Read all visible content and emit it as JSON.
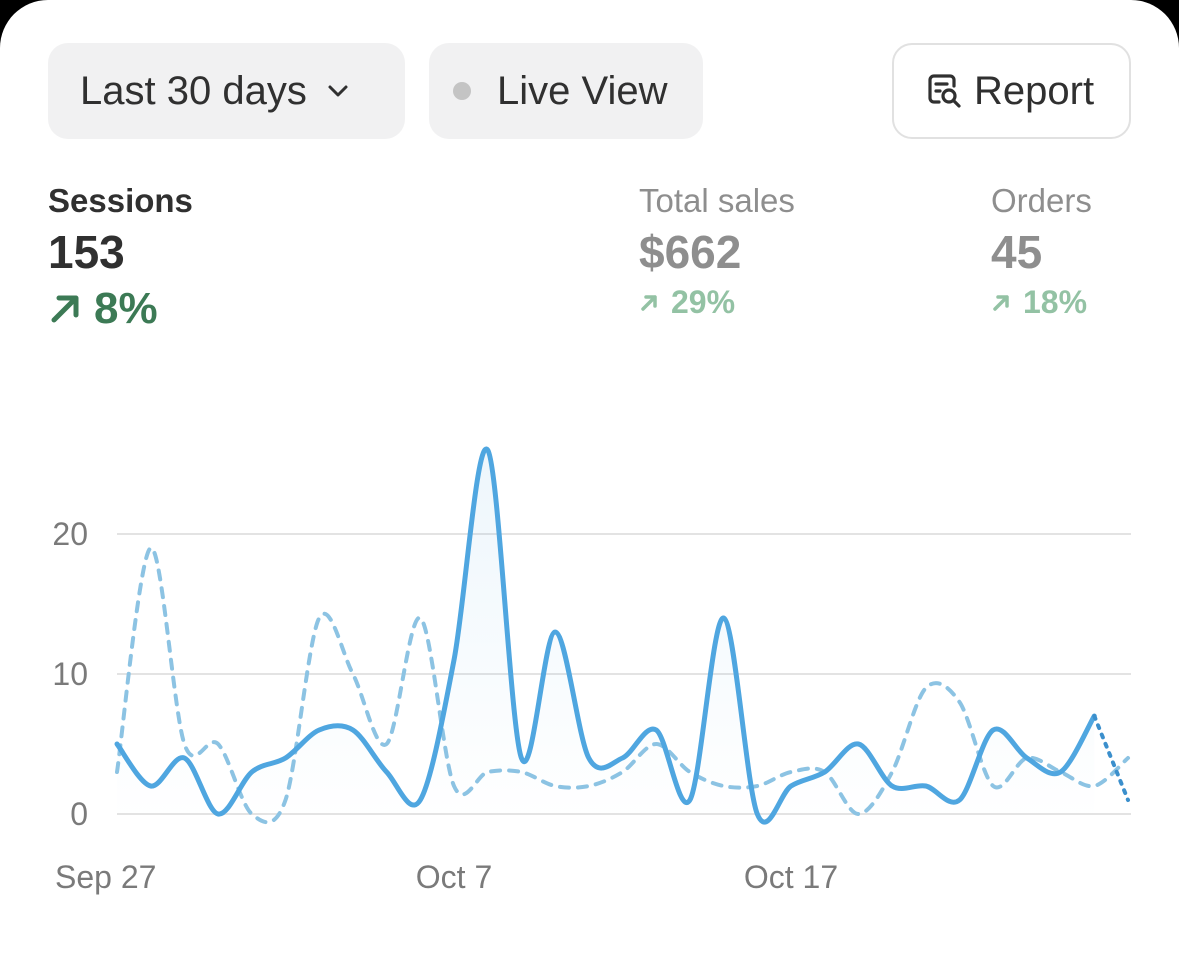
{
  "controls": {
    "date_range_label": "Last 30 days",
    "live_view_label": "Live View",
    "report_label": "Report"
  },
  "metrics": {
    "sessions": {
      "label": "Sessions",
      "value": "153",
      "change": "8%"
    },
    "total_sales": {
      "label": "Total sales",
      "value": "$662",
      "change": "29%"
    },
    "orders": {
      "label": "Orders",
      "value": "45",
      "change": "18%"
    }
  },
  "colors": {
    "accent_line": "#4fa6e0",
    "comparison_line": "#8cc3e3",
    "positive_change": "#3c7a55",
    "positive_change_muted": "#93c2a4"
  },
  "chart_data": {
    "type": "line",
    "ylim": [
      0,
      20
    ],
    "y_ticks": [
      0,
      10,
      20
    ],
    "y_tick_labels": [
      "0",
      "10",
      "20"
    ],
    "x_ticks": [
      0,
      10,
      20
    ],
    "x_tick_labels": [
      "Sep 27",
      "Oct 7",
      "Oct 17"
    ],
    "grid": true,
    "series": [
      {
        "style": "solid",
        "values": [
          5,
          2,
          4,
          0,
          3,
          4,
          6,
          6,
          3,
          1,
          11,
          26,
          4,
          13,
          4,
          4,
          6,
          1,
          14,
          0,
          2,
          3,
          5,
          2,
          2,
          1,
          6,
          4,
          3,
          7,
          1
        ]
      },
      {
        "style": "dashed",
        "values": [
          3,
          19,
          5,
          5,
          0,
          1,
          14,
          10,
          5,
          14,
          2,
          3,
          3,
          2,
          2,
          3,
          5,
          3,
          2,
          2,
          3,
          3,
          0,
          3,
          9,
          8,
          2,
          4,
          3,
          2,
          4
        ]
      }
    ]
  }
}
